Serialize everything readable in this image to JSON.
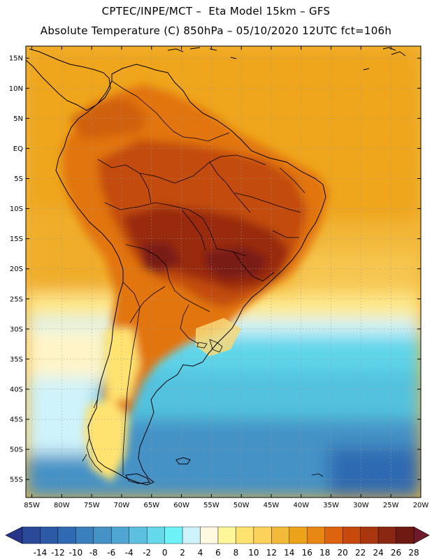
{
  "header": {
    "line1": "CPTEC/INPE/MCT –  Eta Model 15km – GFS",
    "line2": "Absolute Temperature (C) 850hPa – 05/10/2020 12UTC fct=106h"
  },
  "map": {
    "lon_range": [
      -86,
      -20
    ],
    "lat_range": [
      -58,
      17
    ],
    "lat_ticks": [
      "15N",
      "10N",
      "5N",
      "EQ",
      "5S",
      "10S",
      "15S",
      "20S",
      "25S",
      "30S",
      "35S",
      "40S",
      "45S",
      "50S",
      "55S"
    ],
    "lat_values": [
      15,
      10,
      5,
      0,
      -5,
      -10,
      -15,
      -20,
      -25,
      -30,
      -35,
      -40,
      -45,
      -50,
      -55
    ],
    "lon_ticks": [
      "85W",
      "80W",
      "75W",
      "70W",
      "65W",
      "60W",
      "55W",
      "50W",
      "45W",
      "40W",
      "35W",
      "30W",
      "25W",
      "20W"
    ],
    "lon_values": [
      -85,
      -80,
      -75,
      -70,
      -65,
      -60,
      -55,
      -50,
      -45,
      -40,
      -35,
      -30,
      -25,
      -20
    ]
  },
  "colorbar": {
    "labels": [
      "-14",
      "-12",
      "-10",
      "-8",
      "-6",
      "-4",
      "-2",
      "0",
      "2",
      "4",
      "6",
      "8",
      "10",
      "12",
      "14",
      "16",
      "18",
      "20",
      "22",
      "24",
      "26",
      "28"
    ],
    "colors": [
      "#2a4a99",
      "#2c5aa6",
      "#2f6ab2",
      "#3a7fbe",
      "#4592c6",
      "#4fa6d2",
      "#5cc0e0",
      "#66d8ec",
      "#6ef2f8",
      "#cff3fb",
      "#fff9e2",
      "#fff69a",
      "#ffe371",
      "#fcd25a",
      "#f3ba3a",
      "#eda21c",
      "#e88714",
      "#dc640e",
      "#c74a0c",
      "#a83710",
      "#8a2712",
      "#6e1a12"
    ],
    "under_color": "#27358a",
    "over_color": "#6e1a2a"
  },
  "colors": {
    "ocean_warm": "#efa51e",
    "ocean_mid": "#f2b73a",
    "ocean_pale": "#ffe98a",
    "ocean_cyan": "#5fd5ea",
    "ocean_blue": "#4fa6d2",
    "land_hot": "#b8420c",
    "land_very_hot": "#862212",
    "coast": "#000000",
    "grid": "#aaaaaa"
  }
}
